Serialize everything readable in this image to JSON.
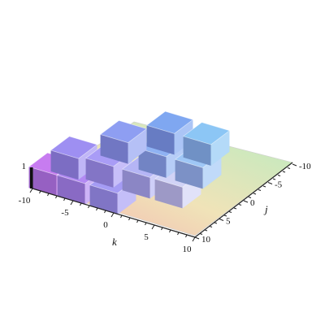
{
  "chart_data": {
    "type": "surface3d",
    "title": "",
    "axes": {
      "k": {
        "label": "k",
        "range": [
          -10,
          10
        ],
        "ticks": [
          -10,
          -5,
          0,
          5,
          10
        ]
      },
      "j": {
        "label": "j",
        "range": [
          -10,
          10
        ],
        "ticks": [
          -10,
          -5,
          0,
          5,
          10
        ]
      },
      "z": {
        "label": "",
        "range": [
          0,
          1
        ],
        "ticks": [
          1
        ]
      }
    },
    "surface": {
      "description_level": 0,
      "plateau_level": 1,
      "plateaus": [
        {
          "k": -8.5,
          "j": 8.5,
          "z": 1,
          "color": "#c77cf0"
        },
        {
          "k": -5,
          "j": 8.5,
          "z": 1,
          "color": "#b38af3"
        },
        {
          "k": -1,
          "j": 8.5,
          "z": 1,
          "color": "#a59cf4"
        },
        {
          "k": -8.5,
          "j": 4,
          "z": 1,
          "color": "#9e8ff2"
        },
        {
          "k": -4.5,
          "j": 3.5,
          "z": 1,
          "color": "#a99cf6"
        },
        {
          "k": 0,
          "j": 3.5,
          "z": 1,
          "color": "#b5b5f5"
        },
        {
          "k": 4,
          "j": 3.5,
          "z": 1,
          "color": "#d1d3f6"
        },
        {
          "k": -6,
          "j": -2,
          "z": 1,
          "color": "#8e9ef2"
        },
        {
          "k": -1,
          "j": -1.5,
          "z": 1,
          "color": "#8fb2f3"
        },
        {
          "k": 3.5,
          "j": -1.5,
          "z": 1,
          "color": "#9fc7f6"
        },
        {
          "k": -3,
          "j": -6.5,
          "z": 1,
          "color": "#7fa7f1"
        },
        {
          "k": 1.5,
          "j": -6.5,
          "z": 1,
          "color": "#8cc6f5"
        }
      ]
    },
    "colors": {
      "floor_front": "#f2b7a9",
      "floor_mid": "#e6e6b0",
      "floor_back": "#bfe6b7",
      "edge": "#3a3a3a"
    }
  }
}
